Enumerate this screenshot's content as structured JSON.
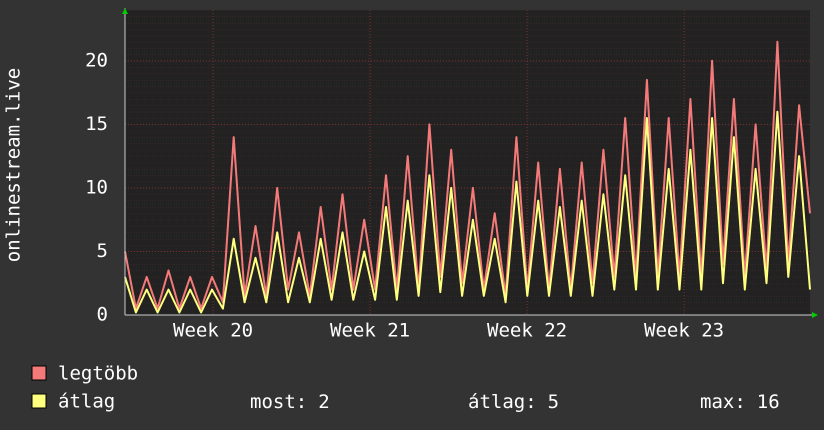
{
  "chart_data": {
    "type": "line",
    "y_label": "onlinestream.live",
    "x": [
      0,
      0.5,
      1,
      1.5,
      2,
      2.5,
      3,
      3.5,
      4,
      4.5,
      5,
      5.5,
      6,
      6.5,
      7,
      7.5,
      8,
      8.5,
      9,
      9.5,
      10,
      10.5,
      11,
      11.5,
      12,
      12.5,
      13,
      13.5,
      14,
      14.5,
      15,
      15.5,
      16,
      16.5,
      17,
      17.5,
      18,
      18.5,
      19,
      19.5,
      20,
      20.5,
      21,
      21.5,
      22,
      22.5,
      23,
      23.5,
      24,
      24.5,
      25,
      25.5,
      26,
      26.5,
      27,
      27.5,
      28,
      28.5,
      29,
      29.5,
      30,
      30.5,
      31,
      31.5
    ],
    "series": [
      {
        "name": "legtöbb",
        "color": "#f47a7a",
        "values": [
          5,
          0.5,
          3,
          0.5,
          3.5,
          0.5,
          3,
          0.5,
          3,
          1,
          14,
          1.5,
          7,
          1.5,
          10,
          2,
          6.5,
          1.5,
          8.5,
          2,
          9.5,
          2,
          7.5,
          2,
          11,
          2,
          12.5,
          2,
          15,
          3,
          13,
          2.5,
          10,
          2,
          8,
          1.5,
          14,
          2,
          12,
          2,
          11.5,
          2,
          12,
          2.5,
          13,
          3,
          15.5,
          3,
          18.5,
          3,
          15.5,
          3,
          17,
          3,
          20,
          4,
          17,
          3,
          15,
          3.5,
          21.5,
          4,
          16.5,
          8
        ]
      },
      {
        "name": "átlag",
        "color": "#ffff80",
        "values": [
          3,
          0.2,
          2,
          0.2,
          2,
          0.2,
          2,
          0.2,
          2,
          0.5,
          6,
          1,
          4.5,
          1,
          6.5,
          1,
          4.5,
          1,
          6,
          1.2,
          6.5,
          1.2,
          5,
          1.2,
          8.5,
          1.2,
          9,
          1.5,
          11,
          1.8,
          10,
          1.5,
          7.5,
          1.5,
          6,
          1,
          10.5,
          1.5,
          9,
          1.5,
          8.5,
          1.5,
          9,
          1.5,
          9.5,
          2,
          11,
          2,
          15.5,
          2,
          11.5,
          2,
          13,
          2,
          15.5,
          2.5,
          14,
          2,
          11.5,
          2.5,
          16,
          3,
          12.5,
          2
        ]
      }
    ],
    "xlim": [
      0,
      31.5
    ],
    "xticks": [
      {
        "value": 4.05,
        "label": "Week 20"
      },
      {
        "value": 11.27,
        "label": "Week 21"
      },
      {
        "value": 18.49,
        "label": "Week 22"
      },
      {
        "value": 25.71,
        "label": "Week 23"
      }
    ],
    "ylim": [
      0,
      24
    ],
    "yticks": [
      0,
      5,
      10,
      15,
      20
    ],
    "grid": true,
    "stats": [
      {
        "label": "most:",
        "value": 2
      },
      {
        "label": "átlag:",
        "value": 5
      },
      {
        "label": "max:",
        "value": 16
      }
    ]
  }
}
